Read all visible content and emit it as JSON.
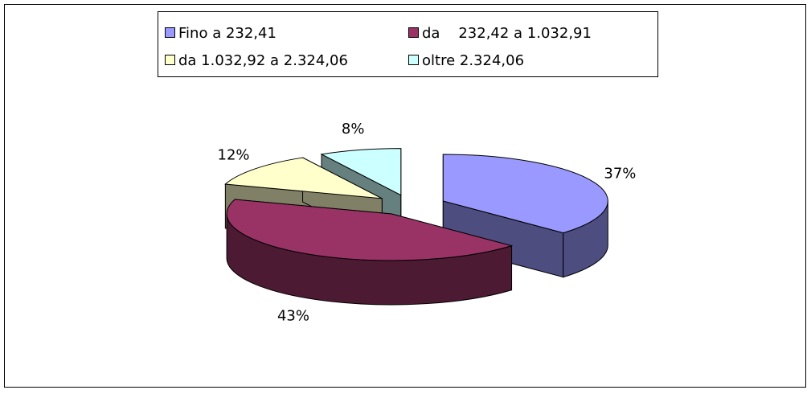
{
  "chart_data": {
    "type": "pie3d",
    "categories": [
      "Fino a 232,41",
      "da    232,42 a 1.032,91",
      "da 1.032,92 a 2.324,06",
      "oltre 2.324,06"
    ],
    "values": [
      37,
      43,
      12,
      8
    ],
    "value_labels": [
      "37%",
      "43%",
      "12%",
      "8%"
    ],
    "colors": [
      "#9999ff",
      "#993366",
      "#ffffcc",
      "#ccffff"
    ],
    "legend": "top"
  }
}
